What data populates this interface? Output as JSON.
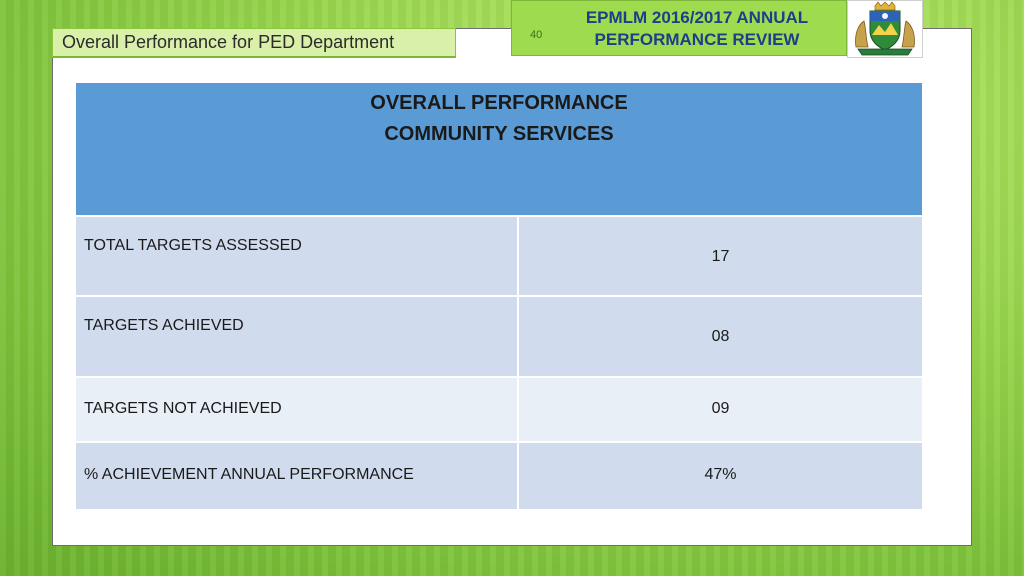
{
  "slide": {
    "section_title": "Overall Performance for PED Department",
    "slide_number": "40",
    "header_line1": "EPMLM 2016/2017 ANNUAL",
    "header_line2": "PERFORMANCE REVIEW"
  },
  "table": {
    "heading_line1": "OVERALL PERFORMANCE",
    "heading_line2": "COMMUNITY SERVICES",
    "rows": [
      {
        "label": "TOTAL TARGETS ASSESSED",
        "value": "17"
      },
      {
        "label": "TARGETS ACHIEVED",
        "value": "08"
      },
      {
        "label": "TARGETS NOT ACHIEVED",
        "value": "09"
      },
      {
        "label": "% ACHIEVEMENT ANNUAL PERFORMANCE",
        "value": "47%"
      }
    ]
  },
  "colors": {
    "accent_green": "#9edb4f",
    "table_header_blue": "#5b9bd5",
    "title_blue": "#1d3f8a"
  },
  "icons": {
    "crest": "municipal-crest-icon"
  }
}
